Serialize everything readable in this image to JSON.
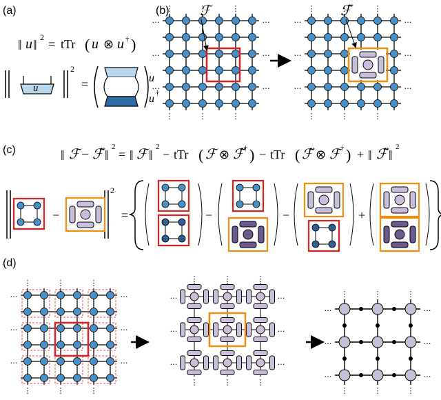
{
  "panels": {
    "a": {
      "label": "(a)",
      "norm_eq": {
        "lhs_var": "u",
        "sq": "2",
        "ttr": "tTr",
        "u1": "u",
        "otimes": "⊗",
        "u2": "u",
        "dag": "†"
      },
      "tensor_eq": {
        "u_label": "u",
        "u_label_right": "u",
        "u_dag_label": "u",
        "dag": "†",
        "sq": "2"
      }
    },
    "b": {
      "label": "(b)",
      "F_label": "ℱ",
      "F_tilde_label": "ℱ̃"
    },
    "c": {
      "label": "(c)",
      "equation": {
        "F": "ℱ",
        "minus": "−",
        "Ft": "ℱ̃",
        "sq": "2",
        "eq": "=",
        "t1_F": "ℱ",
        "ttr": "tTr",
        "t2_F": "ℱ",
        "t2_Ft": "ℱ̃",
        "dag": "†",
        "t3_Ft": "ℱ̃",
        "t3_F": "ℱ",
        "plus": "+",
        "t4_Ft": "ℱ̃"
      },
      "diagram_ops": [
        "−",
        "=",
        "−",
        "−",
        "+"
      ]
    },
    "d": {
      "label": "(d)"
    }
  },
  "colors": {
    "node_blue": "#4a90c8",
    "node_dark": "#2f5f8f",
    "red_box": "#e02020",
    "orange_box": "#f28c0f",
    "purple_light": "#c9bfdd",
    "purple_dark": "#6a5a8e",
    "dashed_red": "#e05050"
  },
  "ellipsis": "…",
  "vdots": "⋮"
}
